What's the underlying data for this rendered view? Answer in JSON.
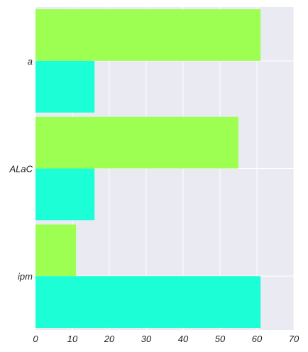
{
  "chart_data": {
    "type": "bar",
    "orientation": "horizontal",
    "categories": [
      "a",
      "ALaC",
      "ipm"
    ],
    "series": [
      {
        "color": "#9cff52",
        "values": [
          61,
          55,
          11
        ]
      },
      {
        "color": "#1cffd6",
        "values": [
          16,
          16,
          61
        ]
      }
    ],
    "xlim": [
      0,
      70
    ],
    "x_ticks": [
      0,
      10,
      20,
      30,
      40,
      50,
      60,
      70
    ],
    "grid": true,
    "background_color": "#eaeaf2",
    "grid_color": "#ffffff"
  }
}
